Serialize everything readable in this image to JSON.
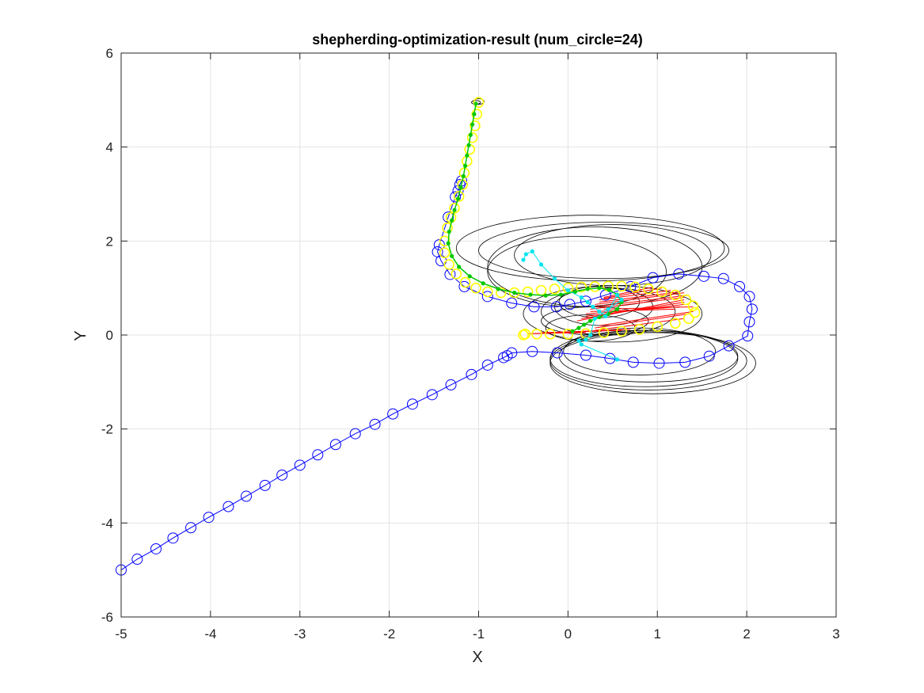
{
  "chart_data": {
    "type": "scatter",
    "title": "shepherding-optimization-result (num_circle=24)",
    "xlabel": "X",
    "ylabel": "Y",
    "xlim": [
      -5,
      3
    ],
    "ylim": [
      -6,
      6
    ],
    "grid": true,
    "xticks": [
      "-5",
      "-4",
      "-3",
      "-2",
      "-1",
      "0",
      "1",
      "2",
      "3"
    ],
    "yticks": [
      "-6",
      "-4",
      "-2",
      "0",
      "2",
      "4",
      "6"
    ],
    "colors": {
      "blue": "#0000ff",
      "black": "#000000",
      "red": "#ff0000",
      "yellow": "#ffff00",
      "green": "#00c800",
      "cyan": "#00e5ee"
    },
    "series": [
      {
        "color": "blue",
        "marker": "circle-open",
        "line": "solid",
        "x": [
          -5.0,
          -4.82,
          -4.61,
          -4.42,
          -4.22,
          -4.02,
          -3.8,
          -3.6,
          -3.39,
          -3.2,
          -3.0,
          -2.8,
          -2.6,
          -2.38,
          -2.16,
          -1.96,
          -1.74,
          -1.52,
          -1.31,
          -1.08,
          -0.9,
          -0.72,
          -0.68,
          -0.63,
          -0.4,
          -0.12,
          0.2,
          0.47,
          0.73,
          1.02,
          1.31,
          1.58,
          1.8,
          2.01,
          2.03,
          2.06,
          2.03,
          1.92,
          1.74,
          1.52,
          1.24,
          0.95,
          0.7,
          0.42,
          0.2,
          0.02,
          -0.13,
          -0.38,
          -0.63,
          -0.9,
          -1.16,
          -1.32,
          -1.42,
          -1.46,
          -1.44,
          -1.34,
          -1.26,
          -1.23,
          -1.21,
          -1.19
        ],
        "y": [
          -5.0,
          -4.77,
          -4.55,
          -4.32,
          -4.1,
          -3.88,
          -3.65,
          -3.43,
          -3.2,
          -2.98,
          -2.77,
          -2.55,
          -2.33,
          -2.1,
          -1.9,
          -1.68,
          -1.47,
          -1.27,
          -1.06,
          -0.84,
          -0.64,
          -0.48,
          -0.44,
          -0.38,
          -0.35,
          -0.38,
          -0.43,
          -0.5,
          -0.58,
          -0.6,
          -0.58,
          -0.45,
          -0.23,
          -0.02,
          0.28,
          0.55,
          0.82,
          1.03,
          1.2,
          1.25,
          1.3,
          1.22,
          1.03,
          0.85,
          0.72,
          0.65,
          0.6,
          0.6,
          0.68,
          0.82,
          1.03,
          1.29,
          1.58,
          1.77,
          1.92,
          2.51,
          2.94,
          3.07,
          3.2,
          3.28
        ]
      },
      {
        "color": "yellow",
        "marker": "circle-open",
        "line": "none",
        "x": [
          -1.0,
          -1.02,
          -1.04,
          -1.07,
          -1.1,
          -1.13,
          -1.16,
          -1.18,
          -1.22,
          -1.27,
          -1.31,
          -1.35,
          -1.38,
          -1.38,
          -1.33,
          -1.25,
          -1.15,
          -1.03,
          -0.9,
          -0.75,
          -0.6,
          -0.45,
          -0.3,
          -0.15,
          0.0,
          0.15,
          0.3,
          0.45,
          0.6,
          0.75,
          0.9,
          1.05,
          1.2,
          1.32,
          1.4,
          1.42,
          1.35,
          1.2,
          1.0,
          0.8,
          0.6,
          0.4,
          0.2,
          0.0,
          -0.2,
          -0.35,
          -0.48,
          -0.5
        ],
        "y": [
          4.95,
          4.7,
          4.45,
          4.2,
          3.95,
          3.7,
          3.45,
          3.2,
          2.95,
          2.7,
          2.5,
          2.28,
          2.0,
          1.75,
          1.5,
          1.3,
          1.12,
          1.0,
          0.92,
          0.9,
          0.9,
          0.92,
          0.95,
          0.98,
          1.0,
          1.02,
          1.03,
          1.04,
          1.04,
          1.02,
          0.98,
          0.92,
          0.85,
          0.75,
          0.62,
          0.48,
          0.35,
          0.25,
          0.18,
          0.12,
          0.08,
          0.05,
          0.03,
          0.02,
          0.02,
          0.02,
          0.02,
          0.0
        ]
      },
      {
        "color": "green",
        "marker": "dot",
        "line": "solid",
        "x": [
          -1.03,
          -1.05,
          -1.07,
          -1.09,
          -1.11,
          -1.13,
          -1.15,
          -1.17,
          -1.2,
          -1.23,
          -1.27,
          -1.3,
          -1.33,
          -1.34,
          -1.3,
          -1.22,
          -1.1,
          -0.95,
          -0.78,
          -0.6,
          -0.42,
          -0.25,
          -0.08,
          0.08,
          0.22,
          0.35,
          0.46,
          0.55,
          0.6,
          0.55,
          0.45,
          0.35,
          0.25,
          0.18,
          0.12,
          0.05
        ],
        "y": [
          4.92,
          4.7,
          4.48,
          4.26,
          4.04,
          3.82,
          3.6,
          3.38,
          3.14,
          2.9,
          2.66,
          2.44,
          2.2,
          1.95,
          1.68,
          1.45,
          1.25,
          1.1,
          0.98,
          0.9,
          0.86,
          0.84,
          0.86,
          0.92,
          0.98,
          1.0,
          0.96,
          0.86,
          0.7,
          0.55,
          0.45,
          0.38,
          0.3,
          0.22,
          0.15,
          0.08
        ]
      },
      {
        "color": "cyan",
        "marker": "dot",
        "line": "solid",
        "x": [
          -0.5,
          -0.47,
          -0.4,
          -0.3,
          -0.15,
          0.0,
          0.15,
          0.22,
          0.28,
          0.35,
          0.42,
          0.55,
          0.6,
          0.45,
          0.3,
          0.25,
          0.2,
          0.12,
          0.15,
          0.55
        ],
        "y": [
          1.6,
          1.72,
          1.78,
          1.5,
          1.2,
          0.95,
          0.8,
          0.7,
          0.6,
          0.5,
          0.4,
          0.85,
          0.75,
          0.55,
          0.35,
          0.0,
          -0.1,
          -0.12,
          -0.2,
          -0.52
        ]
      }
    ],
    "black_ellipses": [
      {
        "cx": 0.25,
        "cy": 1.85,
        "rx": 1.5,
        "ry": 0.7
      },
      {
        "cx": 0.4,
        "cy": 1.8,
        "rx": 1.4,
        "ry": 0.6
      },
      {
        "cx": 0.5,
        "cy": 1.7,
        "rx": 1.1,
        "ry": 0.65
      },
      {
        "cx": 0.3,
        "cy": 1.45,
        "rx": 1.2,
        "ry": 0.85
      },
      {
        "cx": 0.1,
        "cy": 1.35,
        "rx": 1.0,
        "ry": 0.75
      },
      {
        "cx": 0.35,
        "cy": 0.7,
        "rx": 0.45,
        "ry": 0.33
      },
      {
        "cx": 0.4,
        "cy": 0.6,
        "rx": 0.55,
        "ry": 0.4
      },
      {
        "cx": 0.45,
        "cy": 0.5,
        "rx": 0.75,
        "ry": 0.5
      },
      {
        "cx": 0.5,
        "cy": 0.45,
        "rx": 1.0,
        "ry": 0.6
      },
      {
        "cx": 0.3,
        "cy": 0.3,
        "rx": 0.6,
        "ry": 0.3
      },
      {
        "cx": 0.25,
        "cy": 0.15,
        "rx": 0.5,
        "ry": 0.28
      },
      {
        "cx": 0.9,
        "cy": -0.55,
        "rx": 1.1,
        "ry": 0.62
      },
      {
        "cx": 0.95,
        "cy": -0.6,
        "rx": 1.15,
        "ry": 0.65
      },
      {
        "cx": 0.85,
        "cy": -0.5,
        "rx": 1.05,
        "ry": 0.6
      },
      {
        "cx": 0.9,
        "cy": -0.45,
        "rx": 1.0,
        "ry": 0.55
      },
      {
        "cx": 0.8,
        "cy": -0.35,
        "rx": 0.85,
        "ry": 0.5
      },
      {
        "cx": -1.0,
        "cy": 4.97,
        "rx": 0.06,
        "ry": 0.06
      },
      {
        "cx": -1.03,
        "cy": 4.95,
        "rx": 0.05,
        "ry": 0.04
      }
    ],
    "red_fan": [
      [
        -0.45,
        0.03,
        0.2,
        0.05
      ],
      [
        -0.4,
        0.03,
        0.3,
        0.08
      ],
      [
        -0.35,
        0.03,
        0.4,
        0.1
      ],
      [
        0.1,
        0.3,
        1.3,
        0.75
      ],
      [
        0.15,
        0.35,
        1.3,
        0.7
      ],
      [
        0.2,
        0.4,
        1.3,
        0.65
      ],
      [
        0.2,
        0.45,
        1.25,
        0.6
      ],
      [
        0.25,
        0.5,
        1.2,
        0.55
      ],
      [
        0.25,
        0.55,
        1.3,
        0.8
      ],
      [
        0.3,
        0.6,
        1.35,
        0.85
      ],
      [
        0.3,
        0.65,
        1.3,
        0.9
      ],
      [
        0.35,
        0.7,
        1.25,
        0.92
      ],
      [
        0.35,
        0.75,
        1.15,
        0.95
      ],
      [
        0.4,
        0.78,
        1.05,
        1.0
      ],
      [
        0.4,
        0.8,
        0.95,
        1.02
      ],
      [
        0.3,
        0.15,
        1.35,
        0.45
      ],
      [
        0.35,
        0.2,
        1.4,
        0.5
      ],
      [
        0.3,
        0.1,
        1.3,
        0.35
      ],
      [
        -0.3,
        0.05,
        0.6,
        0.1
      ],
      [
        -0.2,
        0.05,
        0.7,
        0.12
      ],
      [
        0.4,
        0.55,
        1.4,
        0.6
      ]
    ]
  }
}
